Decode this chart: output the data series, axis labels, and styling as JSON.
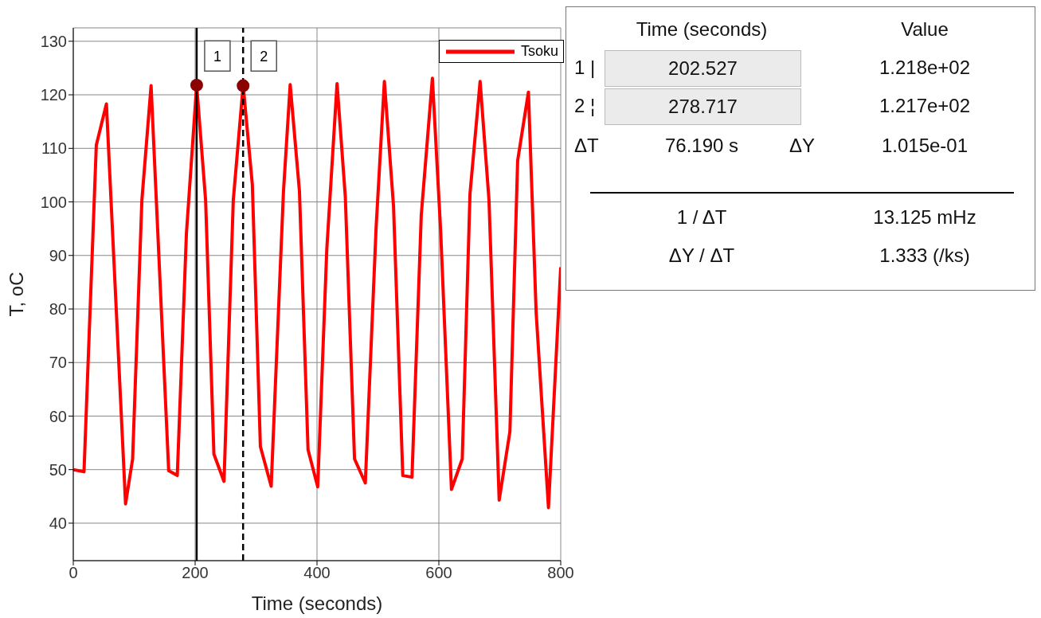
{
  "chart_data": {
    "type": "line",
    "xlabel": "Time (seconds)",
    "ylabel": "T, oC",
    "xlim": [
      0,
      800
    ],
    "xticks": [
      0,
      200,
      400,
      600,
      800
    ],
    "ylim": [
      33,
      132.5
    ],
    "yticks": [
      40,
      50,
      60,
      70,
      80,
      90,
      100,
      110,
      120,
      130
    ],
    "grid": true,
    "legend": "top right",
    "line_style": "solid",
    "series": [
      {
        "name": "Tsoku",
        "color": "#ff0000",
        "x": [
          0,
          17.6,
          37.8,
          54.4,
          85.8,
          97.4,
          112.6,
          127.7,
          156.6,
          170.7,
          185.7,
          202.5,
          217.2,
          230.8,
          247.4,
          262.6,
          278.8,
          293.9,
          307.1,
          324.8,
          345,
          356,
          371.2,
          385.3,
          401.2,
          416.1,
          432.9,
          446.5,
          461.6,
          479.3,
          497,
          510.6,
          525.6,
          540.8,
          555.9,
          571.1,
          589.4,
          602.9,
          620.7,
          638.4,
          651.1,
          667.7,
          682.3,
          699,
          716.6,
          729.3,
          747,
          759.7,
          779.9,
          800
        ],
        "values": [
          50,
          49.6,
          110.6,
          118.3,
          43.6,
          52,
          100.3,
          121.7,
          49.8,
          48.9,
          94.1,
          121.8,
          100.3,
          52.9,
          47.8,
          100.3,
          121.8,
          103.2,
          54.3,
          46.9,
          102,
          121.9,
          102,
          53.7,
          46.8,
          91.2,
          122.1,
          100.9,
          52,
          47.5,
          95.2,
          122.5,
          99.2,
          48.9,
          48.6,
          97.5,
          123.1,
          94.7,
          46.3,
          52,
          101.5,
          122.5,
          100.3,
          44.3,
          57.1,
          107.7,
          120.5,
          79.3,
          42.9,
          87.8
        ]
      },
      {
        "type": "scatter",
        "color": "#8b0000",
        "marker": "circle",
        "x": [
          202.527,
          278.717
        ],
        "values": [
          121.8,
          121.7
        ]
      }
    ],
    "ref_lines": [
      {
        "axis": "x",
        "value": 202.527,
        "color": "#000000",
        "line_style": "solid"
      },
      {
        "axis": "x",
        "value": 278.717,
        "color": "#000000",
        "line_style": "dashed"
      }
    ],
    "annotations": [
      {
        "text": "1",
        "x": 202.527,
        "y": 128
      },
      {
        "text": "2",
        "x": 278.717,
        "y": 128
      },
      "Time (seconds)",
      "Value",
      "1 |",
      "202.527",
      "1.218e+02",
      "2 ¦",
      "278.717",
      "1.217e+02",
      "ΔT",
      "76.190 s",
      "ΔY",
      "1.015e-01",
      "1 / ΔT",
      "13.125 mHz",
      "ΔY / ΔT",
      "1.333 (/ks)"
    ]
  }
}
